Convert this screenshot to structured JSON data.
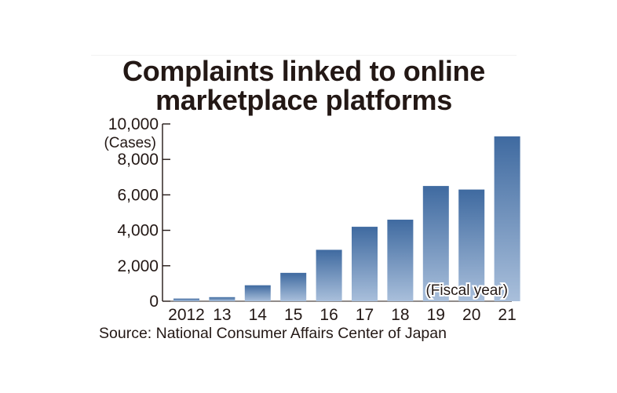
{
  "chart_data": {
    "type": "bar",
    "title_lines": [
      "Complaints linked to online",
      "marketplace platforms"
    ],
    "ylabel": "(Cases)",
    "xlabel": "(Fiscal year)",
    "categories": [
      "2012",
      "13",
      "14",
      "15",
      "16",
      "17",
      "18",
      "19",
      "20",
      "21"
    ],
    "values": [
      150,
      230,
      900,
      1600,
      2900,
      4200,
      4600,
      6500,
      6300,
      9300
    ],
    "ylim": [
      0,
      10000
    ],
    "yticks": [
      0,
      2000,
      4000,
      6000,
      8000,
      10000
    ],
    "ytick_labels": [
      "0",
      "2,000",
      "4,000",
      "6,000",
      "8,000",
      "10,000"
    ],
    "grid": false,
    "bar_color_top": "#3f6aa0",
    "bar_color_bottom": "#a9bfdb",
    "text_color": "#231815"
  },
  "source": "Source: National Consumer Affairs Center of Japan"
}
